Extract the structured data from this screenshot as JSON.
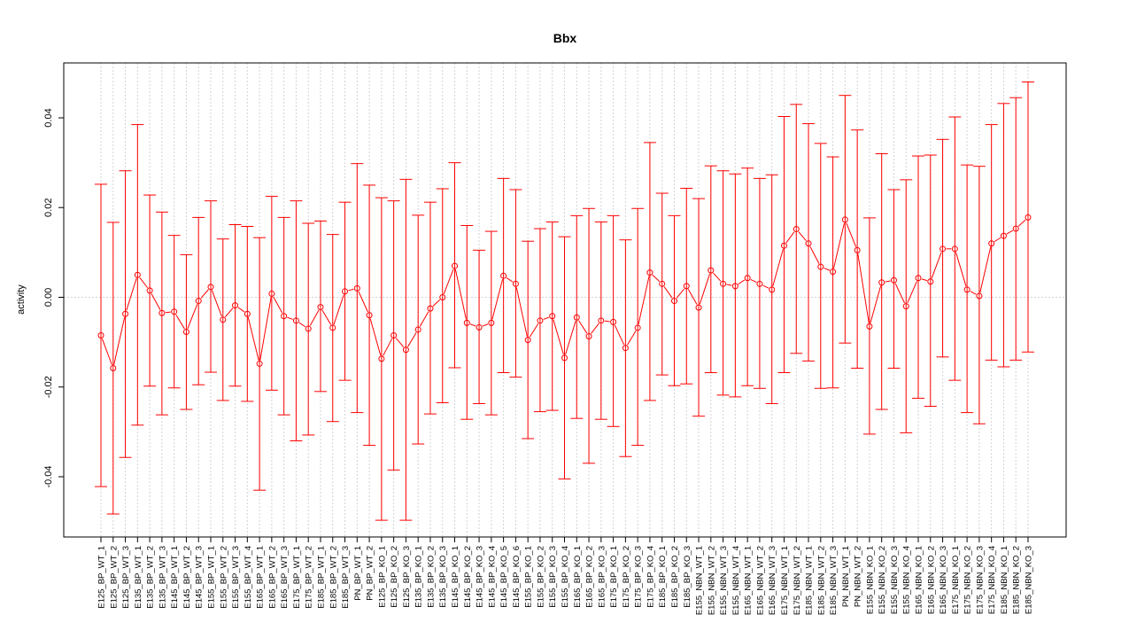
{
  "chart_data": {
    "type": "line",
    "title": "Bbx",
    "xlabel": "",
    "ylabel": "activity",
    "ylim": [
      -0.053,
      0.053
    ],
    "yticks": [
      -0.04,
      -0.02,
      0.0,
      0.02,
      0.04
    ],
    "ytick_labels": [
      "-0.04",
      "-0.02",
      "0.00",
      "0.02",
      "0.04"
    ],
    "grid": true,
    "reference_line": 0.0,
    "color": "#ff0000",
    "categories": [
      "E125_BP_WT_1",
      "E125_BP_WT_2",
      "E125_BP_WT_3",
      "E135_BP_WT_1",
      "E135_BP_WT_2",
      "E135_BP_WT_3",
      "E145_BP_WT_1",
      "E145_BP_WT_2",
      "E145_BP_WT_3",
      "E155_BP_WT_1",
      "E155_BP_WT_2",
      "E155_BP_WT_3",
      "E155_BP_WT_4",
      "E165_BP_WT_1",
      "E165_BP_WT_2",
      "E165_BP_WT_3",
      "E175_BP_WT_1",
      "E175_BP_WT_2",
      "E185_BP_WT_1",
      "E185_BP_WT_2",
      "E185_BP_WT_3",
      "PN_BP_WT_1",
      "PN_BP_WT_2",
      "E125_BP_KO_1",
      "E125_BP_KO_2",
      "E125_BP_KO_3",
      "E135_BP_KO_1",
      "E135_BP_KO_2",
      "E135_BP_KO_3",
      "E145_BP_KO_1",
      "E145_BP_KO_2",
      "E145_BP_KO_3",
      "E145_BP_KO_4",
      "E145_BP_KO_5",
      "E145_BP_KO_6",
      "E155_BP_KO_1",
      "E155_BP_KO_2",
      "E155_BP_KO_3",
      "E155_BP_KO_4",
      "E165_BP_KO_1",
      "E165_BP_KO_2",
      "E165_BP_KO_3",
      "E175_BP_KO_1",
      "E175_BP_KO_2",
      "E175_BP_KO_3",
      "E175_BP_KO_4",
      "E185_BP_KO_1",
      "E185_BP_KO_2",
      "E185_BP_KO_3",
      "E155_NBN_WT_1",
      "E155_NBN_WT_2",
      "E155_NBN_WT_3",
      "E155_NBN_WT_4",
      "E165_NBN_WT_1",
      "E165_NBN_WT_2",
      "E165_NBN_WT_3",
      "E175_NBN_WT_1",
      "E175_NBN_WT_2",
      "E185_NBN_WT_1",
      "E185_NBN_WT_2",
      "E185_NBN_WT_3",
      "PN_NBN_WT_1",
      "PN_NBN_WT_2",
      "E155_NBN_KO_1",
      "E155_NBN_KO_2",
      "E155_NBN_KO_3",
      "E155_NBN_KO_4",
      "E165_NBN_KO_1",
      "E165_NBN_KO_2",
      "E165_NBN_KO_3",
      "E175_NBN_KO_1",
      "E175_NBN_KO_2",
      "E175_NBN_KO_3",
      "E175_NBN_KO_4",
      "E185_NBN_KO_1",
      "E185_NBN_KO_2",
      "E185_NBN_KO_3"
    ],
    "values": [
      -0.0085,
      -0.0158,
      -0.0037,
      0.005,
      0.0015,
      -0.0035,
      -0.0032,
      -0.0077,
      -0.0008,
      0.0023,
      -0.005,
      -0.0018,
      -0.0037,
      -0.0148,
      0.0008,
      -0.0042,
      -0.0052,
      -0.007,
      -0.0022,
      -0.0068,
      0.0013,
      0.002,
      -0.004,
      -0.0137,
      -0.0085,
      -0.0117,
      -0.0072,
      -0.0025,
      0.0,
      0.007,
      -0.0057,
      -0.0067,
      -0.0057,
      0.0048,
      0.003,
      -0.0095,
      -0.0052,
      -0.0042,
      -0.0135,
      -0.0045,
      -0.0087,
      -0.0052,
      -0.0055,
      -0.0113,
      -0.0068,
      0.0055,
      0.003,
      -0.0008,
      0.0025,
      -0.0023,
      0.006,
      0.003,
      0.0025,
      0.0043,
      0.003,
      0.0017,
      0.0115,
      0.0152,
      0.012,
      0.0068,
      0.0057,
      0.0173,
      0.0105,
      -0.0065,
      0.0033,
      0.0038,
      -0.002,
      0.0043,
      0.0035,
      0.0108,
      0.0108,
      0.0017,
      0.0003,
      0.012,
      0.0137,
      0.0153,
      0.0178
    ],
    "upper": [
      0.0252,
      0.0167,
      0.0282,
      0.0385,
      0.0228,
      0.019,
      0.0138,
      0.0095,
      0.0178,
      0.0215,
      0.013,
      0.0162,
      0.0158,
      0.0133,
      0.0225,
      0.0178,
      0.0215,
      0.0165,
      0.017,
      0.014,
      0.0212,
      0.0298,
      0.025,
      0.0222,
      0.0215,
      0.0263,
      0.0183,
      0.0212,
      0.0242,
      0.03,
      0.016,
      0.0105,
      0.0147,
      0.0265,
      0.024,
      0.0125,
      0.0153,
      0.0168,
      0.0135,
      0.0182,
      0.0198,
      0.0168,
      0.0182,
      0.0128,
      0.0198,
      0.0345,
      0.0232,
      0.0182,
      0.0243,
      0.022,
      0.0293,
      0.0282,
      0.0275,
      0.0288,
      0.0265,
      0.0273,
      0.0403,
      0.043,
      0.0387,
      0.0343,
      0.0313,
      0.045,
      0.0373,
      0.0177,
      0.032,
      0.024,
      0.0262,
      0.0315,
      0.0317,
      0.0352,
      0.0402,
      0.0295,
      0.0292,
      0.0385,
      0.0432,
      0.0445,
      0.048
    ],
    "lower": [
      -0.0422,
      -0.0483,
      -0.0357,
      -0.0285,
      -0.0198,
      -0.0262,
      -0.0202,
      -0.025,
      -0.0195,
      -0.0167,
      -0.023,
      -0.0198,
      -0.0232,
      -0.043,
      -0.0207,
      -0.0262,
      -0.032,
      -0.0307,
      -0.021,
      -0.0277,
      -0.0185,
      -0.0257,
      -0.033,
      -0.0497,
      -0.0385,
      -0.0497,
      -0.0327,
      -0.026,
      -0.0235,
      -0.0157,
      -0.0272,
      -0.0237,
      -0.0262,
      -0.0168,
      -0.0178,
      -0.0315,
      -0.0255,
      -0.0252,
      -0.0405,
      -0.027,
      -0.037,
      -0.0272,
      -0.0288,
      -0.0355,
      -0.033,
      -0.023,
      -0.0173,
      -0.0197,
      -0.0193,
      -0.0265,
      -0.0168,
      -0.0218,
      -0.0222,
      -0.0197,
      -0.0203,
      -0.0237,
      -0.0168,
      -0.0125,
      -0.0142,
      -0.0203,
      -0.0202,
      -0.0102,
      -0.0158,
      -0.0305,
      -0.025,
      -0.0158,
      -0.0302,
      -0.0225,
      -0.0243,
      -0.0133,
      -0.0185,
      -0.0257,
      -0.0282,
      -0.014,
      -0.0155,
      -0.014,
      -0.0122
    ]
  }
}
